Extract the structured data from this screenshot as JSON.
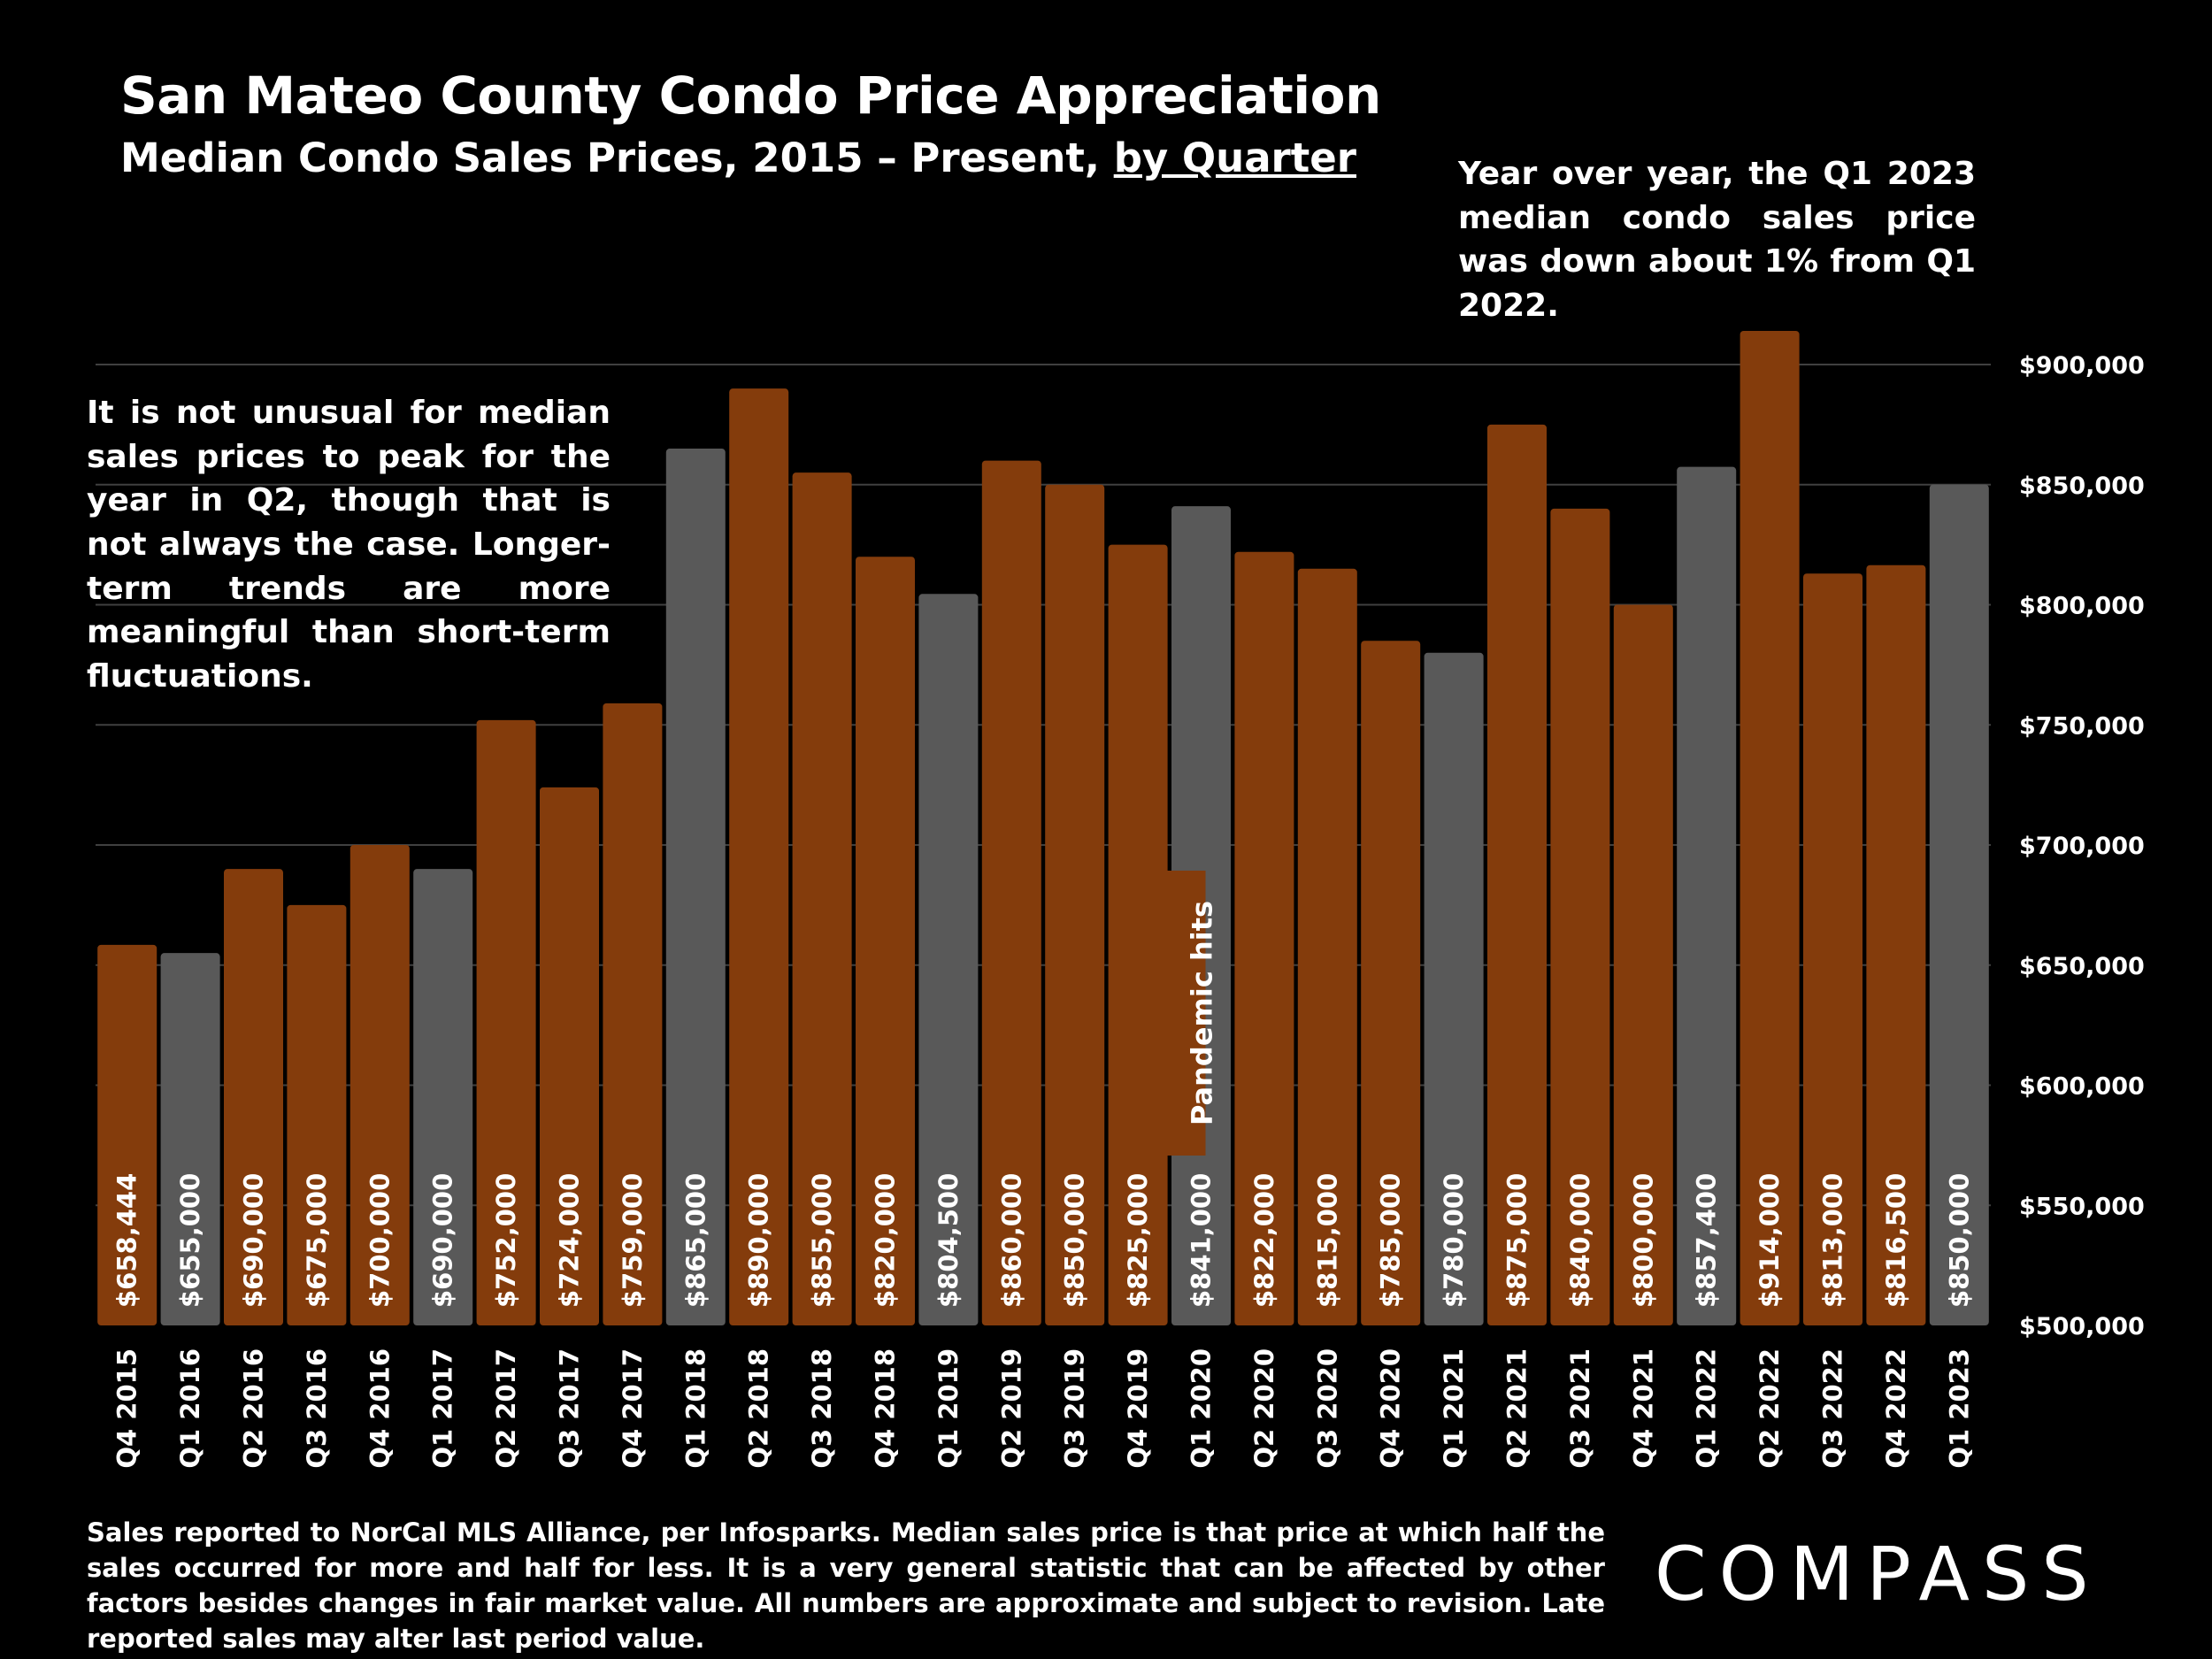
{
  "title": "San Mateo County Condo Price Appreciation",
  "subtitle_prefix": "Median Condo Sales Prices, 2015 – Present,",
  "subtitle_link": "by Quarter",
  "note_yoy": "Year over year, the Q1 2023 median condo sales price was down about 1% from Q1 2022.",
  "note_peak": "It is not unusual for median sales prices to peak for the year in Q2, though that is not always the case. Longer-term trends are more meaningful than short-term fluctuations.",
  "footnote": "Sales reported to NorCal MLS Alliance, per Infosparks. Median sales price is that price at which half the sales occurred for more and half for less. It is a very general statistic that can be affected by other factors besides changes in fair market value. All numbers are approximate and subject to revision. Late reported sales may alter last period value.",
  "logo_text": "COMPASS",
  "colors": {
    "background": "#000000",
    "q1_bar": "#595959",
    "other_bar": "#843c0c",
    "gridline": "#404040",
    "text": "#ffffff"
  },
  "chart_data": {
    "type": "bar",
    "categories": [
      "Q4 2015",
      "Q1 2016",
      "Q2 2016",
      "Q3 2016",
      "Q4 2016",
      "Q1 2017",
      "Q2 2017",
      "Q3 2017",
      "Q4 2017",
      "Q1 2018",
      "Q2 2018",
      "Q3 2018",
      "Q4 2018",
      "Q1 2019",
      "Q2 2019",
      "Q3 2019",
      "Q4 2019",
      "Q1 2020",
      "Q2 2020",
      "Q3 2020",
      "Q4 2020",
      "Q1 2021",
      "Q2 2021",
      "Q3 2021",
      "Q4 2021",
      "Q1 2022",
      "Q2 2022",
      "Q3 2022",
      "Q4 2022",
      "Q1 2023"
    ],
    "values": [
      658444,
      655000,
      690000,
      675000,
      700000,
      690000,
      752000,
      724000,
      759000,
      865000,
      890000,
      855000,
      820000,
      804500,
      860000,
      850000,
      825000,
      841000,
      822000,
      815000,
      785000,
      780000,
      875000,
      840000,
      800000,
      857400,
      914000,
      813000,
      816500,
      850000
    ],
    "value_labels": [
      "$658,444",
      "$655,000",
      "$690,000",
      "$675,000",
      "$700,000",
      "$690,000",
      "$752,000",
      "$724,000",
      "$759,000",
      "$865,000",
      "$890,000",
      "$855,000",
      "$820,000",
      "$804,500",
      "$860,000",
      "$850,000",
      "$825,000",
      "$841,000",
      "$822,000",
      "$815,000",
      "$785,000",
      "$780,000",
      "$875,000",
      "$840,000",
      "$800,000",
      "$857,400",
      "$914,000",
      "$813,000",
      "$816,500",
      "$850,000"
    ],
    "highlight": "Q1 quarters shown in gray; other quarters in brown",
    "ylim": [
      500000,
      900000
    ],
    "yticks": [
      500000,
      550000,
      600000,
      650000,
      700000,
      750000,
      800000,
      850000,
      900000
    ],
    "ytick_labels": [
      "$500,000",
      "$550,000",
      "$600,000",
      "$650,000",
      "$700,000",
      "$750,000",
      "$800,000",
      "$850,000",
      "$900,000"
    ],
    "y_axis_position": "right",
    "grid": true,
    "annotation": {
      "text": "Pandemic hits",
      "category": "Q1 2020"
    }
  }
}
